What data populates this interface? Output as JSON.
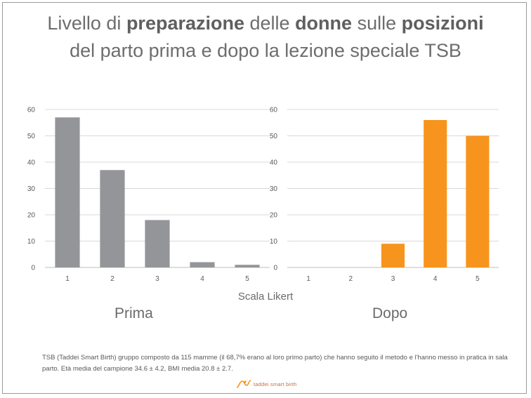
{
  "title": {
    "line1": [
      {
        "text": "Livello di ",
        "bold": false
      },
      {
        "text": "preparazione",
        "bold": true
      },
      {
        "text": " delle ",
        "bold": false
      },
      {
        "text": "donne",
        "bold": true
      },
      {
        "text": " sulle ",
        "bold": false
      },
      {
        "text": "posizioni",
        "bold": true
      }
    ],
    "line2": "del parto prima e dopo la lezione speciale TSB"
  },
  "chart_data": [
    {
      "type": "bar",
      "title": "Prima",
      "xlabel": "Scala Likert",
      "ylabel": "",
      "categories": [
        "1",
        "2",
        "3",
        "4",
        "5"
      ],
      "values": [
        57,
        37,
        18,
        2,
        1
      ],
      "ylim": [
        0,
        60
      ],
      "yticks": [
        0,
        10,
        20,
        30,
        40,
        50,
        60
      ],
      "grid": true,
      "color": "#939598"
    },
    {
      "type": "bar",
      "title": "Dopo",
      "xlabel": "Scala Likert",
      "ylabel": "",
      "categories": [
        "1",
        "2",
        "3",
        "4",
        "5"
      ],
      "values": [
        0,
        0,
        9,
        56,
        50
      ],
      "ylim": [
        0,
        60
      ],
      "yticks": [
        0,
        10,
        20,
        30,
        40,
        50,
        60
      ],
      "grid": true,
      "color": "#f7941d"
    }
  ],
  "shared_xlabel": "Scala Likert",
  "footnote": "TSB (Taddei Smart Birth) gruppo composto da 115 mamme (il 68,7% erano al loro primo parto) che hanno seguito il metodo e l'hanno messo in pratica in sala parto. Età media del campione 34.6 ± 4.2, BMI media 20.8 ± 2.7.",
  "logo_text": "taddei smart birth",
  "colors": {
    "grid": "#d9d9d9",
    "axis": "#bfbfbf",
    "logo": "#f7941d"
  }
}
